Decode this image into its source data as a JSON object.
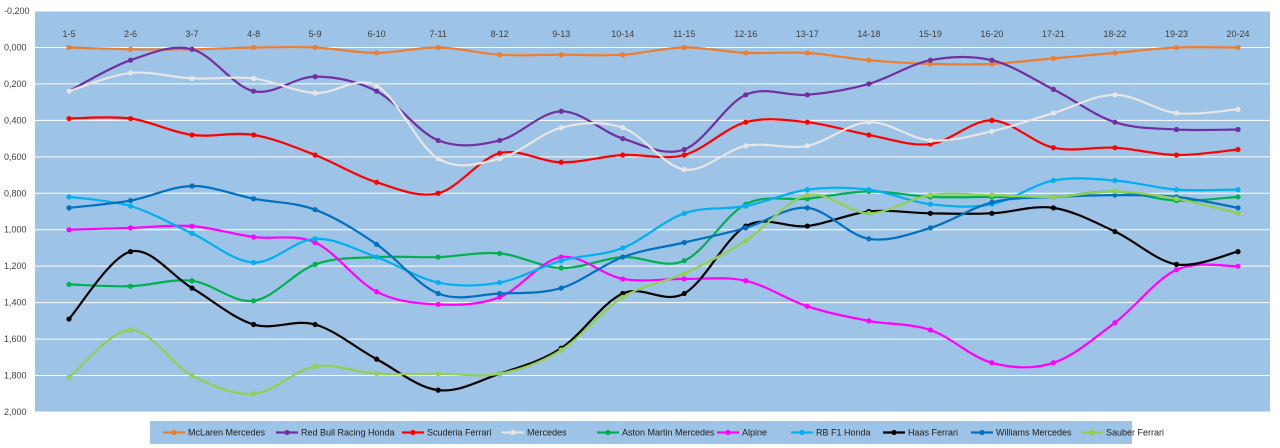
{
  "chart_data": {
    "type": "line",
    "title": "",
    "xlabel": "",
    "ylabel": "",
    "y_reversed": true,
    "ylim": [
      -0.2,
      2.0
    ],
    "yticks": [
      -0.2,
      0.0,
      0.2,
      0.4,
      0.6,
      0.8,
      1.0,
      1.2,
      1.4,
      1.6,
      1.8,
      2.0
    ],
    "ytick_labels": [
      "-0,200",
      "0,000",
      "0,200",
      "0,400",
      "0,600",
      "0,800",
      "1,000",
      "1,200",
      "1,400",
      "1,600",
      "1,800",
      "2,000"
    ],
    "grid": true,
    "background": "#9dc3e6",
    "legend_position": "bottom",
    "categories": [
      "1-5",
      "2-6",
      "3-7",
      "4-8",
      "5-9",
      "6-10",
      "7-11",
      "8-12",
      "9-13",
      "10-14",
      "11-15",
      "12-16",
      "13-17",
      "14-18",
      "15-19",
      "16-20",
      "17-21",
      "18-22",
      "19-23",
      "20-24"
    ],
    "series": [
      {
        "name": "McLaren Mercedes",
        "color": "#ed7d31",
        "values": [
          0.0,
          0.01,
          0.01,
          0.0,
          0.0,
          0.03,
          0.0,
          0.04,
          0.04,
          0.04,
          0.0,
          0.03,
          0.03,
          0.07,
          0.09,
          0.09,
          0.06,
          0.03,
          0.0,
          0.0
        ]
      },
      {
        "name": "Red Bull Racing Honda",
        "color": "#7030a0",
        "values": [
          0.24,
          0.07,
          0.01,
          0.24,
          0.16,
          0.24,
          0.51,
          0.51,
          0.35,
          0.5,
          0.56,
          0.26,
          0.26,
          0.2,
          0.07,
          0.07,
          0.23,
          0.41,
          0.45,
          0.45
        ]
      },
      {
        "name": "Scuderia Ferrari",
        "color": "#ff0000",
        "values": [
          0.39,
          0.39,
          0.48,
          0.48,
          0.59,
          0.74,
          0.8,
          0.58,
          0.63,
          0.59,
          0.59,
          0.41,
          0.41,
          0.48,
          0.53,
          0.4,
          0.55,
          0.55,
          0.59,
          0.56
        ]
      },
      {
        "name": "Mercedes",
        "color": "#e7e6e6",
        "values": [
          0.24,
          0.14,
          0.17,
          0.17,
          0.25,
          0.21,
          0.61,
          0.61,
          0.44,
          0.44,
          0.67,
          0.54,
          0.54,
          0.41,
          0.51,
          0.46,
          0.36,
          0.26,
          0.36,
          0.34
        ]
      },
      {
        "name": "Aston Martin Mercedes",
        "color": "#00b050",
        "values": [
          1.3,
          1.31,
          1.28,
          1.39,
          1.19,
          1.15,
          1.15,
          1.13,
          1.21,
          1.15,
          1.17,
          0.86,
          0.83,
          0.79,
          0.82,
          0.82,
          0.82,
          0.79,
          0.84,
          0.82
        ]
      },
      {
        "name": "Alpine",
        "color": "#ff00ff",
        "values": [
          1.0,
          0.99,
          0.98,
          1.04,
          1.07,
          1.34,
          1.41,
          1.37,
          1.15,
          1.27,
          1.27,
          1.28,
          1.42,
          1.5,
          1.55,
          1.73,
          1.73,
          1.51,
          1.22,
          1.2
        ]
      },
      {
        "name": "RB F1 Honda",
        "color": "#00b0f0",
        "values": [
          0.82,
          0.87,
          1.02,
          1.18,
          1.05,
          1.15,
          1.29,
          1.29,
          1.17,
          1.1,
          0.91,
          0.87,
          0.78,
          0.78,
          0.86,
          0.86,
          0.73,
          0.73,
          0.78,
          0.78
        ]
      },
      {
        "name": "Haas Ferrari",
        "color": "#000000",
        "values": [
          1.49,
          1.12,
          1.32,
          1.52,
          1.52,
          1.71,
          1.88,
          1.79,
          1.65,
          1.35,
          1.35,
          0.98,
          0.98,
          0.9,
          0.91,
          0.91,
          0.88,
          1.01,
          1.19,
          1.12
        ]
      },
      {
        "name": "Williams Mercedes",
        "color": "#0070c0",
        "values": [
          0.88,
          0.84,
          0.76,
          0.83,
          0.89,
          1.08,
          1.35,
          1.35,
          1.32,
          1.15,
          1.07,
          0.99,
          0.88,
          1.05,
          0.99,
          0.85,
          0.82,
          0.81,
          0.82,
          0.88
        ]
      },
      {
        "name": "Sauber Ferrari",
        "color": "#92d050",
        "values": [
          1.81,
          1.55,
          1.8,
          1.9,
          1.75,
          1.79,
          1.79,
          1.79,
          1.66,
          1.37,
          1.24,
          1.06,
          0.81,
          0.91,
          0.81,
          0.81,
          0.82,
          0.79,
          0.83,
          0.91
        ]
      }
    ]
  }
}
